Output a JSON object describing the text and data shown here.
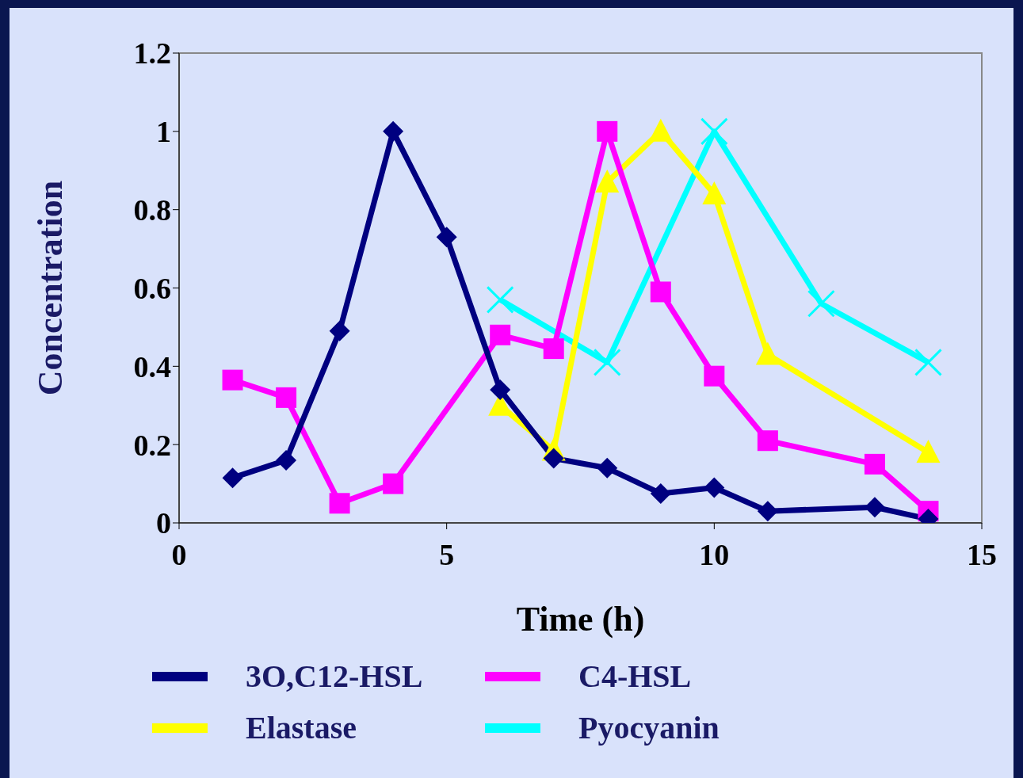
{
  "chart_data": {
    "type": "line",
    "xlabel": "Time (h)",
    "ylabel": "Concentration",
    "xlim": [
      0,
      15
    ],
    "xticks": [
      0,
      5,
      10,
      15
    ],
    "ylim": [
      0,
      1.2
    ],
    "yticks": [
      0,
      0.2,
      0.4,
      0.6,
      0.8,
      1,
      1.2
    ],
    "grid": false,
    "legend": "bottom",
    "line_style": "solid",
    "series": [
      {
        "name": "3O,C12-HSL",
        "color": "#000080",
        "marker": "diamond",
        "x": [
          1,
          2,
          3,
          4,
          5,
          6,
          7,
          8,
          9,
          10,
          11,
          13,
          14
        ],
        "values": [
          0.115,
          0.16,
          0.49,
          1.0,
          0.73,
          0.34,
          0.165,
          0.14,
          0.075,
          0.09,
          0.03,
          0.04,
          0.01
        ]
      },
      {
        "name": "C4-HSL",
        "color": "#ff00ff",
        "marker": "square",
        "x": [
          1,
          2,
          3,
          4,
          6,
          7,
          8,
          9,
          10,
          11,
          13,
          14
        ],
        "values": [
          0.365,
          0.32,
          0.05,
          0.1,
          0.48,
          0.445,
          1.0,
          0.59,
          0.375,
          0.21,
          0.15,
          0.03
        ]
      },
      {
        "name": "Elastase",
        "color": "#ffff00",
        "marker": "triangle",
        "x": [
          6,
          7,
          8,
          9,
          10,
          11,
          14
        ],
        "values": [
          0.3,
          0.185,
          0.87,
          1.0,
          0.84,
          0.43,
          0.18
        ]
      },
      {
        "name": "Pyocyanin",
        "color": "#00ffff",
        "marker": "cross",
        "x": [
          6,
          8,
          10,
          12,
          14
        ],
        "values": [
          0.57,
          0.41,
          1.0,
          0.56,
          0.41
        ]
      }
    ]
  }
}
